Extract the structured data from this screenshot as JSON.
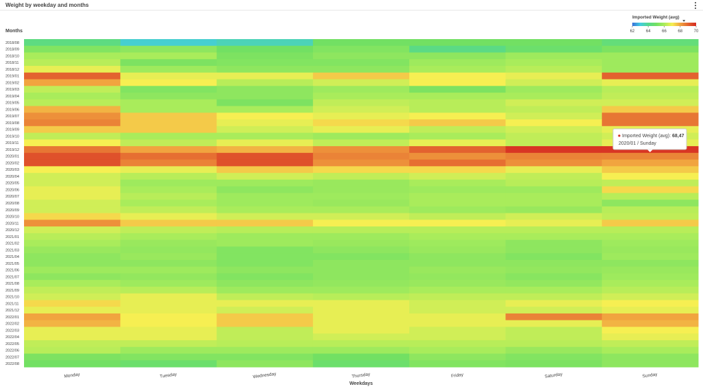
{
  "chart_data": {
    "type": "heatmap",
    "title": "Weight by weekday and months",
    "x_label": "Weekdays",
    "y_label": "Months",
    "categories": [
      "Monday",
      "Tuesday",
      "Wednesday",
      "Thursday",
      "Friday",
      "Saturday",
      "Sunday"
    ],
    "rows": [
      "2018/08",
      "2018/09",
      "2018/10",
      "2018/11",
      "2018/12",
      "2019/01",
      "2019/02",
      "2019/03",
      "2019/04",
      "2019/05",
      "2019/06",
      "2019/07",
      "2019/08",
      "2019/09",
      "2019/10",
      "2019/11",
      "2019/12",
      "2020/01",
      "2020/02",
      "2020/03",
      "2020/04",
      "2020/05",
      "2020/06",
      "2020/07",
      "2020/08",
      "2020/09",
      "2020/10",
      "2020/11",
      "2020/12",
      "2021/01",
      "2021/02",
      "2021/03",
      "2021/04",
      "2021/05",
      "2021/06",
      "2021/07",
      "2021/08",
      "2021/09",
      "2021/10",
      "2021/11",
      "2021/12",
      "2022/01",
      "2022/02",
      "2022/03",
      "2022/04",
      "2022/05",
      "2022/06",
      "2022/07",
      "2022/08"
    ],
    "values": [
      [
        64.3,
        63.2,
        63.5,
        65,
        65,
        65,
        64.5
      ],
      [
        65.3,
        65.5,
        65,
        65.3,
        64.2,
        64.8,
        65.2
      ],
      [
        66,
        66,
        65.2,
        65.5,
        65.5,
        65.8,
        65.8
      ],
      [
        66.2,
        65.2,
        65.3,
        65.3,
        65.8,
        66,
        65.8
      ],
      [
        66.8,
        65.8,
        65.5,
        65.5,
        66,
        66.2,
        65.8
      ],
      [
        69,
        66.8,
        66.8,
        67.5,
        67,
        66.8,
        69
      ],
      [
        68,
        67,
        66.2,
        66.5,
        67,
        66.5,
        66.8
      ],
      [
        66.3,
        65.3,
        65.5,
        65.8,
        65.2,
        65.8,
        66.2
      ],
      [
        66,
        65.5,
        65.5,
        66,
        66,
        66,
        66.3
      ],
      [
        66.2,
        66,
        65.2,
        66.3,
        66.2,
        66.5,
        66.5
      ],
      [
        67.8,
        66,
        66,
        66.5,
        66.2,
        66.3,
        67.5
      ],
      [
        68.3,
        67.5,
        67,
        66.8,
        67,
        66.5,
        68.7
      ],
      [
        68.5,
        67.5,
        66.8,
        67.3,
        67.5,
        67,
        68.7
      ],
      [
        67.5,
        67.5,
        66.5,
        66.8,
        66.3,
        66.5,
        66.8
      ],
      [
        66.3,
        66,
        66,
        65.8,
        66,
        66.3,
        66.5
      ],
      [
        67,
        66.3,
        66.8,
        66.3,
        66.8,
        66.3,
        66.8
      ],
      [
        68.7,
        68,
        67.8,
        68.3,
        69,
        69.8,
        69.8
      ],
      [
        69.3,
        68.8,
        69.3,
        68.5,
        68.3,
        68.5,
        68.47
      ],
      [
        69.3,
        68.5,
        69.3,
        68.3,
        68.8,
        68.3,
        68
      ],
      [
        67,
        66.8,
        67.5,
        67.3,
        67.3,
        66.8,
        67.5
      ],
      [
        66.5,
        66.2,
        66.5,
        66.3,
        66.5,
        66.3,
        67
      ],
      [
        66.5,
        65.8,
        65.8,
        65.7,
        66,
        66.2,
        66.3
      ],
      [
        66.8,
        66,
        65.5,
        65.7,
        65.8,
        65.8,
        67.3
      ],
      [
        66.8,
        66.2,
        65.8,
        65.8,
        66,
        66,
        66.2
      ],
      [
        66.5,
        66,
        65.8,
        65.7,
        66,
        66,
        65.5
      ],
      [
        66.5,
        66.3,
        66,
        66,
        65.8,
        65.7,
        66.2
      ],
      [
        67.3,
        66.8,
        66.5,
        66.5,
        66.3,
        66.5,
        66.3
      ],
      [
        68.3,
        67.5,
        67.5,
        67,
        67,
        66.8,
        67.5
      ],
      [
        66.5,
        66.3,
        66.2,
        66.2,
        66.2,
        66.2,
        66.2
      ],
      [
        66.2,
        66,
        65.8,
        65.8,
        66,
        66,
        66
      ],
      [
        66,
        65.7,
        65.8,
        65.7,
        65.8,
        65.5,
        65.8
      ],
      [
        65.7,
        65.6,
        65.3,
        65.5,
        65.7,
        65.5,
        65.7
      ],
      [
        65.5,
        65.7,
        65.3,
        65.3,
        65.5,
        65.3,
        65.8
      ],
      [
        65.5,
        65.5,
        65.3,
        65.5,
        65.5,
        65.5,
        65.5
      ],
      [
        65.8,
        65.8,
        65.5,
        65.5,
        65.7,
        65.6,
        65.7
      ],
      [
        65.5,
        65.6,
        65.3,
        65.5,
        65.6,
        65.4,
        65.8
      ],
      [
        66,
        65.8,
        65.5,
        65.6,
        65.7,
        65.6,
        66
      ],
      [
        66.3,
        66.2,
        65.8,
        65.8,
        66,
        66,
        66.2
      ],
      [
        66.5,
        66.8,
        66.3,
        66.2,
        66.3,
        66.3,
        66.5
      ],
      [
        67.3,
        66.8,
        66.8,
        66.8,
        66.5,
        66.8,
        67
      ],
      [
        66.8,
        66.8,
        66.5,
        66.8,
        66.5,
        66.5,
        66.8
      ],
      [
        68,
        67,
        67.5,
        66.8,
        66.8,
        68.5,
        68
      ],
      [
        67.8,
        67,
        67.5,
        66.8,
        66.8,
        66.8,
        67.8
      ],
      [
        66.8,
        66.8,
        66.3,
        66.8,
        66.5,
        66.3,
        67
      ],
      [
        66.8,
        66.8,
        66.3,
        66.5,
        66.5,
        66.3,
        66.8
      ],
      [
        66.3,
        66.3,
        66.2,
        66.2,
        66.2,
        66.2,
        66.3
      ],
      [
        66.2,
        65.8,
        65.8,
        65.8,
        66,
        65.7,
        66
      ],
      [
        65.2,
        65.3,
        65.3,
        65,
        65.5,
        65.3,
        65.5
      ],
      [
        65,
        64.8,
        65.5,
        64.8,
        65.3,
        65.2,
        65.5
      ]
    ],
    "colorbar": {
      "label": "Imported Weight (avg)",
      "clim": [
        62,
        70
      ],
      "ticks": [
        62,
        64,
        66,
        68,
        70
      ]
    },
    "colorscale": [
      "#3a6fd9",
      "#42cde0",
      "#55d98e",
      "#72e063",
      "#a9ec5b",
      "#f6ef52",
      "#f1a43f",
      "#e3622f",
      "#d52a21"
    ],
    "tooltip": {
      "row": 17,
      "col": 6,
      "name": "Imported Weight (avg):",
      "value_label": "68,47",
      "text": "2020/01 / Sunday"
    }
  }
}
